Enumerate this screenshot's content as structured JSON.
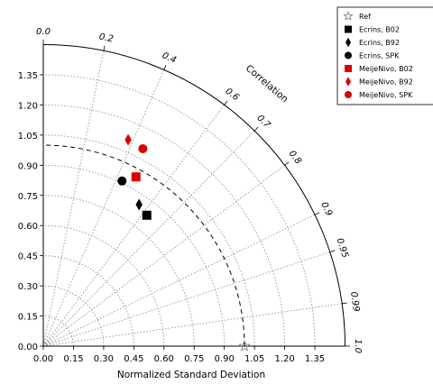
{
  "chart_data": {
    "type": "scatter",
    "subtype": "taylor-diagram",
    "xlabel": "Normalized Standard Deviation",
    "corr_label": "Correlation",
    "std_ticks": [
      "0.00",
      "0.15",
      "0.30",
      "0.45",
      "0.60",
      "0.75",
      "0.90",
      "1.05",
      "1.20",
      "1.35"
    ],
    "std_range": [
      0,
      1.5
    ],
    "reference_std": 1.0,
    "correlation_ticks": [
      "0.0",
      "0.2",
      "0.4",
      "0.6",
      "0.7",
      "0.8",
      "0.9",
      "0.95",
      "0.99",
      "1.0"
    ],
    "grid": true,
    "legend_position": "top-right",
    "series": [
      {
        "name": "Ref",
        "marker": "star",
        "color": "#888888",
        "std": 1.0,
        "corr": 1.0
      },
      {
        "name": "Ecrins, B02",
        "marker": "square",
        "color": "#000000",
        "std": 0.83,
        "corr": 0.62
      },
      {
        "name": "Ecrins, B92",
        "marker": "diamond",
        "color": "#000000",
        "std": 0.85,
        "corr": 0.56
      },
      {
        "name": "Ecrins, SPK",
        "marker": "circle",
        "color": "#000000",
        "std": 0.91,
        "corr": 0.43
      },
      {
        "name": "MeijeNivo, B02",
        "marker": "square",
        "color": "#dd0000",
        "std": 0.96,
        "corr": 0.48
      },
      {
        "name": "MeijeNivo, B92",
        "marker": "diamond",
        "color": "#dd0000",
        "std": 1.11,
        "corr": 0.38
      },
      {
        "name": "MeijeNivo, SPK",
        "marker": "circle",
        "color": "#dd0000",
        "std": 1.1,
        "corr": 0.45
      }
    ]
  }
}
